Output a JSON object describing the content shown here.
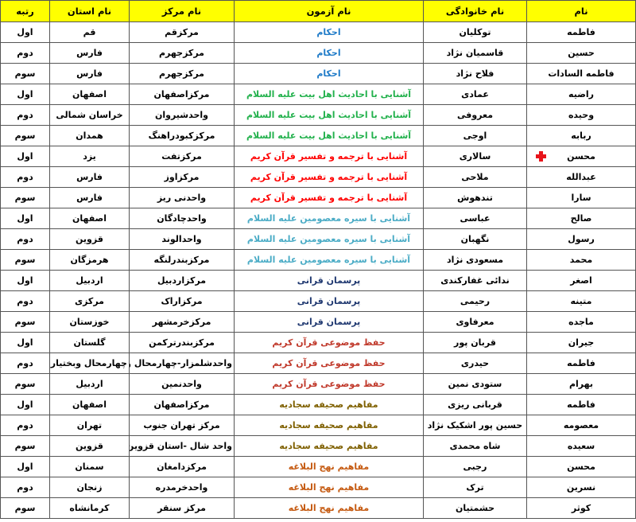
{
  "headers": {
    "name": "نام",
    "family": "نام خانوادگی",
    "exam": "نام آزمون",
    "center": "نام مرکز",
    "province": "نام استان",
    "rank": "رتبه"
  },
  "exam_colors": {
    "احکام": "#1f7bc8",
    "آشنایی با احادیث اهل بیت علیه السلام": "#22b14c",
    "آشنایی با ترجمه و تفسیر قرآن کریم": "#ff0000",
    "آشنایی با سیره معصومین علیه السلام": "#4bacc6",
    "پرسمان قرانی": "#1f3870",
    "حفظ موضوعی قرآن کریم": "#c0392b",
    "مفاهیم صحیفه سجادیه": "#7f6000",
    "مفاهیم نهج البلاغه": "#c55a11"
  },
  "rows": [
    {
      "name": "فاطمه",
      "family": "توکلیان",
      "exam": "احکام",
      "center": "مرکزقم",
      "province": "قم",
      "rank": "اول"
    },
    {
      "name": "حسین",
      "family": "قاسمیان نژاد",
      "exam": "احکام",
      "center": "مرکزجهرم",
      "province": "فارس",
      "rank": "دوم"
    },
    {
      "name": "فاطمه السادات",
      "family": "فلاح نژاد",
      "exam": "احکام",
      "center": "مرکزجهرم",
      "province": "فارس",
      "rank": "سوم"
    },
    {
      "name": "راضیه",
      "family": "عمادی",
      "exam": "آشنایی با احادیث اهل بیت علیه السلام",
      "center": "مرکزاصفهان",
      "province": "اصفهان",
      "rank": "اول"
    },
    {
      "name": "وحیده",
      "family": "معروفی",
      "exam": "آشنایی با احادیث اهل بیت علیه السلام",
      "center": "واحدشیروان",
      "province": "خراسان شمالی",
      "rank": "دوم"
    },
    {
      "name": "ربابه",
      "family": "اوجی",
      "exam": "آشنایی با احادیث اهل بیت علیه السلام",
      "center": "مرکزکبودراهنگ",
      "province": "همدان",
      "rank": "سوم"
    },
    {
      "name": "محسن",
      "family": "سالاری",
      "exam": "آشنایی با ترجمه و تفسیر قرآن کریم",
      "center": "مرکزتفت",
      "province": "یزد",
      "rank": "اول",
      "icon": "red-cross-icon"
    },
    {
      "name": "عبدالله",
      "family": "ملاحی",
      "exam": "آشنایی با ترجمه و تفسیر قرآن کریم",
      "center": "مرکزاوز",
      "province": "فارس",
      "rank": "دوم"
    },
    {
      "name": "سارا",
      "family": "تندهوش",
      "exam": "آشنایی با ترجمه و تفسیر قرآن کریم",
      "center": "واحدنی ریز",
      "province": "فارس",
      "rank": "سوم"
    },
    {
      "name": "صالح",
      "family": "عباسی",
      "exam": "آشنایی با سیره معصومین علیه السلام",
      "center": "واحدچادگان",
      "province": "اصفهان",
      "rank": "اول"
    },
    {
      "name": "رسول",
      "family": "نگهبان",
      "exam": "آشنایی با سیره معصومین علیه السلام",
      "center": "واحدالوند",
      "province": "قزوین",
      "rank": "دوم"
    },
    {
      "name": "محمد",
      "family": "مسعودی نژاد",
      "exam": "آشنایی با سیره معصومین علیه السلام",
      "center": "مرکزبندرلنگه",
      "province": "هرمزگان",
      "rank": "سوم"
    },
    {
      "name": "اصغر",
      "family": "ندائی غفارکندی",
      "exam": "پرسمان قرانی",
      "center": "مرکزاردبیل",
      "province": "اردبیل",
      "rank": "اول"
    },
    {
      "name": "متینه",
      "family": "رحیمی",
      "exam": "پرسمان قرانی",
      "center": "مرکزاراک",
      "province": "مرکزی",
      "rank": "دوم"
    },
    {
      "name": "ماجده",
      "family": "معرفاوی",
      "exam": "پرسمان قرانی",
      "center": "مرکزخرمشهر",
      "province": "خوزستان",
      "rank": "سوم"
    },
    {
      "name": "جیران",
      "family": "قربان پور",
      "exam": "حفظ موضوعی قرآن کریم",
      "center": "مرکزبندرترکمن",
      "province": "گلستان",
      "rank": "اول"
    },
    {
      "name": "فاطمه",
      "family": "حیدری",
      "exam": "حفظ موضوعی قرآن کریم",
      "center": "واحدشلمزار-چهارمحال و بختیاری",
      "province": "چهارمحال وبختیاری",
      "rank": "دوم"
    },
    {
      "name": "بهرام",
      "family": "ستودی نمین",
      "exam": "حفظ موضوعی قرآن کریم",
      "center": "واحدنمین",
      "province": "اردبیل",
      "rank": "سوم"
    },
    {
      "name": "فاطمه",
      "family": "قربانی ریزی",
      "exam": "مفاهیم صحیفه سجادیه",
      "center": "مرکزاصفهان",
      "province": "اصفهان",
      "rank": "اول"
    },
    {
      "name": "معصومه",
      "family": "حسین پور اشکیک نژاد",
      "exam": "مفاهیم صحیفه سجادیه",
      "center": "مرکز تهران جنوب",
      "province": "تهران",
      "rank": "دوم"
    },
    {
      "name": "سعیده",
      "family": "شاه محمدی",
      "exam": "مفاهیم صحیفه سجادیه",
      "center": "واحد شال -استان قزوین",
      "province": "قزوین",
      "rank": "سوم"
    },
    {
      "name": "محسن",
      "family": "رجبی",
      "exam": "مفاهیم نهج البلاغه",
      "center": "مرکزدامغان",
      "province": "سمنان",
      "rank": "اول"
    },
    {
      "name": "نسرین",
      "family": "ترک",
      "exam": "مفاهیم نهج البلاغه",
      "center": "واحدخرمدره",
      "province": "زنجان",
      "rank": "دوم"
    },
    {
      "name": "کوثر",
      "family": "حشمتیان",
      "exam": "مفاهیم نهج البلاغه",
      "center": "مرکز سنقر",
      "province": "کرمانشاه",
      "rank": "سوم"
    }
  ]
}
